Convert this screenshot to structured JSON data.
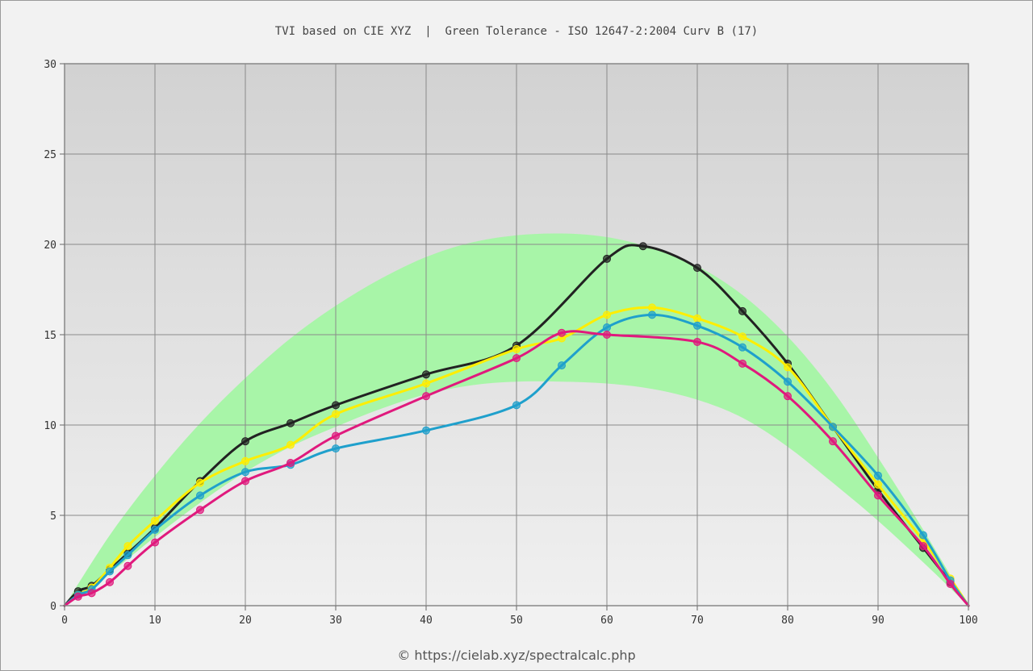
{
  "chart_data": {
    "type": "line",
    "title": "TVI based on CIE XYZ  |  Green Tolerance - ISO 12647-2:2004 Curv B (17)",
    "xlabel": "",
    "ylabel": "",
    "xlim": [
      0,
      100
    ],
    "ylim": [
      0,
      30
    ],
    "x_ticks": [
      "0",
      "10",
      "20",
      "30",
      "40",
      "50",
      "60",
      "70",
      "80",
      "90",
      "100"
    ],
    "y_ticks": [
      "0",
      "5",
      "10",
      "15",
      "20",
      "25",
      "30"
    ],
    "grid": true,
    "tolerance_band": {
      "color": "#a8f5a8",
      "x": [
        0,
        5,
        10,
        15,
        20,
        25,
        30,
        35,
        40,
        45,
        50,
        55,
        60,
        65,
        70,
        75,
        80,
        85,
        90,
        95,
        100
      ],
      "upper": [
        0,
        3.9,
        7.2,
        10.1,
        12.6,
        14.8,
        16.6,
        18.1,
        19.3,
        20.1,
        20.5,
        20.6,
        20.4,
        19.8,
        18.8,
        17.2,
        14.9,
        11.9,
        8.2,
        4.2,
        0
      ],
      "lower": [
        0,
        1.8,
        3.8,
        5.7,
        7.4,
        8.8,
        9.9,
        10.9,
        11.7,
        12.2,
        12.4,
        12.4,
        12.3,
        12.0,
        11.4,
        10.4,
        8.8,
        6.8,
        4.7,
        2.4,
        0
      ]
    },
    "series": [
      {
        "color": "#222222",
        "x": [
          0,
          1.5,
          3,
          5,
          7,
          10,
          15,
          20,
          25,
          30,
          40,
          50,
          60,
          64,
          70,
          75,
          80,
          85,
          90,
          95,
          98,
          100
        ],
        "y": [
          0,
          0.8,
          1.1,
          2.0,
          2.9,
          4.3,
          6.9,
          9.1,
          10.1,
          11.1,
          12.8,
          14.4,
          19.2,
          19.9,
          18.7,
          16.3,
          13.4,
          9.9,
          6.4,
          3.2,
          1.3,
          0
        ]
      },
      {
        "color": "#ffee00",
        "x": [
          0,
          1.5,
          3,
          5,
          7,
          10,
          15,
          20,
          25,
          30,
          40,
          50,
          55,
          60,
          65,
          70,
          75,
          80,
          85,
          90,
          95,
          98,
          100
        ],
        "y": [
          0,
          0.6,
          1.0,
          2.1,
          3.3,
          4.7,
          6.8,
          8.0,
          8.9,
          10.6,
          12.3,
          14.2,
          14.8,
          16.1,
          16.5,
          15.9,
          14.9,
          13.2,
          9.9,
          6.7,
          3.6,
          1.5,
          0
        ]
      },
      {
        "color": "#1fa0cc",
        "x": [
          0,
          1.5,
          3,
          5,
          7,
          10,
          15,
          20,
          25,
          30,
          40,
          50,
          55,
          60,
          65,
          70,
          75,
          80,
          85,
          90,
          95,
          98,
          100
        ],
        "y": [
          0,
          0.6,
          0.9,
          1.9,
          2.8,
          4.2,
          6.1,
          7.4,
          7.8,
          8.7,
          9.7,
          11.1,
          13.3,
          15.4,
          16.1,
          15.5,
          14.3,
          12.4,
          9.9,
          7.2,
          3.9,
          1.4,
          0
        ]
      },
      {
        "color": "#e0197d",
        "x": [
          0,
          1.5,
          3,
          5,
          7,
          10,
          15,
          20,
          25,
          30,
          40,
          50,
          55,
          60,
          70,
          75,
          80,
          85,
          90,
          95,
          98,
          100
        ],
        "y": [
          0,
          0.5,
          0.7,
          1.3,
          2.2,
          3.5,
          5.3,
          6.9,
          7.9,
          9.4,
          11.6,
          13.7,
          15.1,
          15.0,
          14.6,
          13.4,
          11.6,
          9.1,
          6.1,
          3.3,
          1.2,
          0
        ]
      }
    ]
  },
  "footer": {
    "text": "© https://cielab.xyz/spectralcalc.php"
  }
}
